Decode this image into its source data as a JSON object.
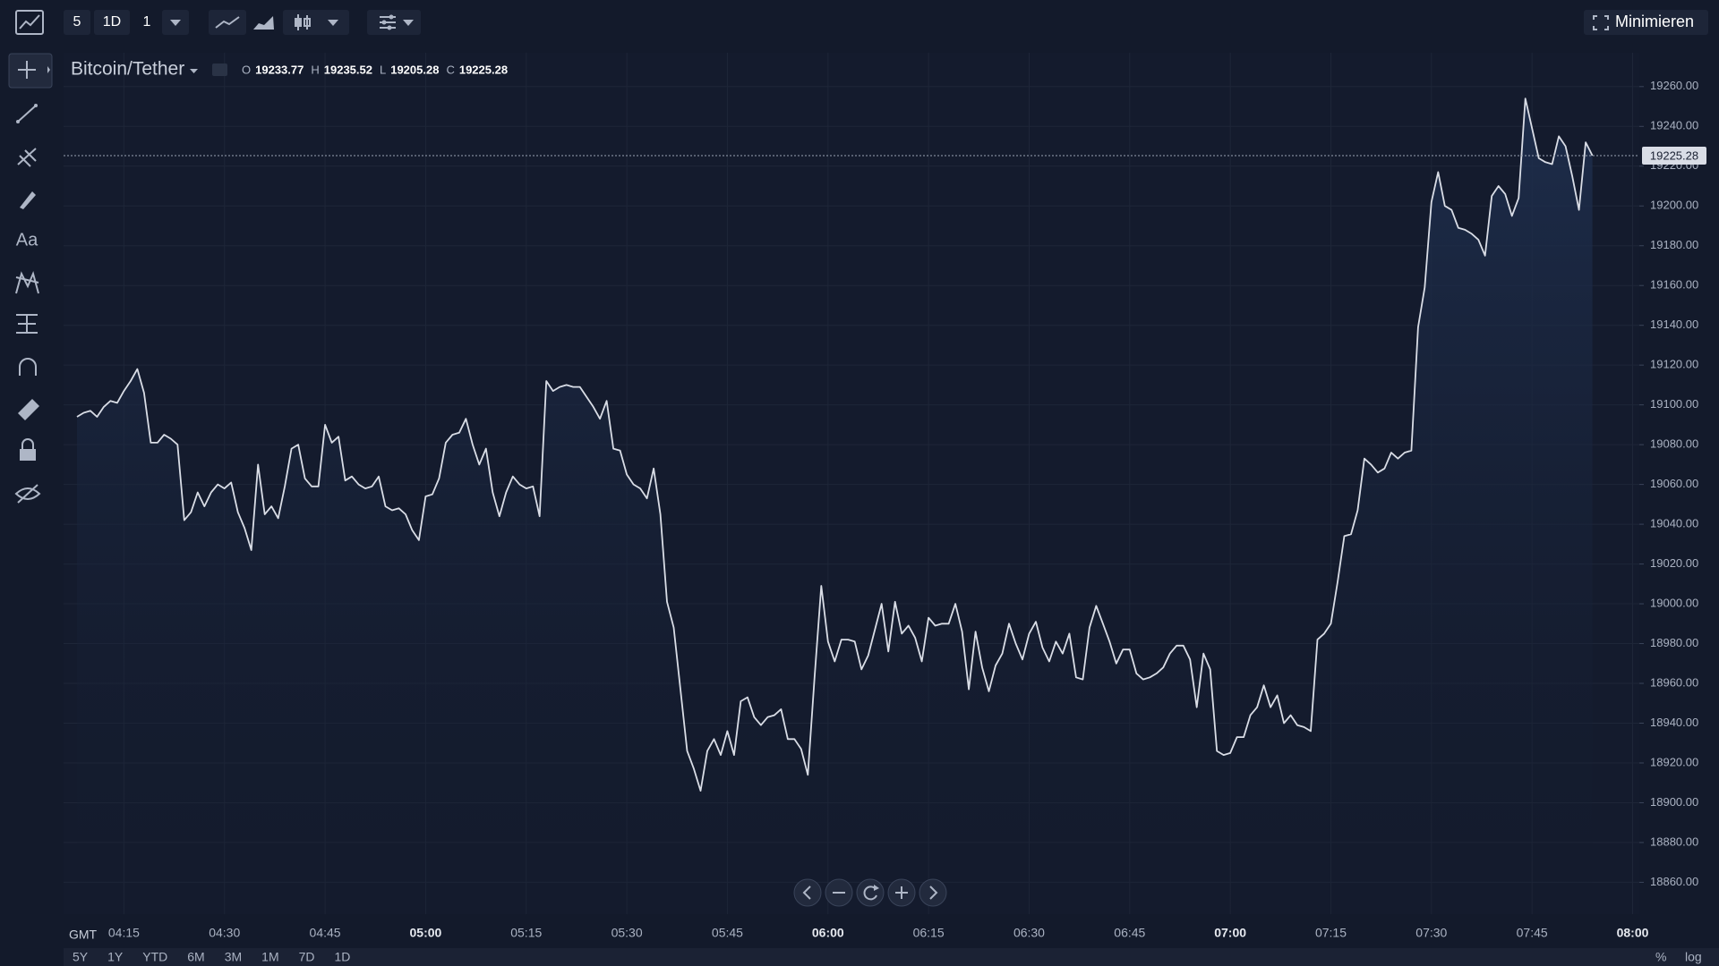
{
  "chart_data": {
    "type": "line",
    "title": "Bitcoin/Tether",
    "color": "#d9dde6",
    "x": [
      "04:08",
      "04:09",
      "04:10",
      "04:11",
      "04:12",
      "04:13",
      "04:14",
      "04:15",
      "04:16",
      "04:17",
      "04:18",
      "04:19",
      "04:20",
      "04:21",
      "04:22",
      "04:23",
      "04:24",
      "04:25",
      "04:26",
      "04:27",
      "04:28",
      "04:29",
      "04:30",
      "04:31",
      "04:32",
      "04:33",
      "04:34",
      "04:35",
      "04:36",
      "04:37",
      "04:38",
      "04:39",
      "04:40",
      "04:41",
      "04:42",
      "04:43",
      "04:44",
      "04:45",
      "04:46",
      "04:47",
      "04:48",
      "04:49",
      "04:50",
      "04:51",
      "04:52",
      "04:53",
      "04:54",
      "04:55",
      "04:56",
      "04:57",
      "04:58",
      "04:59",
      "05:00",
      "05:01",
      "05:02",
      "05:03",
      "05:04",
      "05:05",
      "05:06",
      "05:07",
      "05:08",
      "05:09",
      "05:10",
      "05:11",
      "05:12",
      "05:13",
      "05:14",
      "05:15",
      "05:16",
      "05:17",
      "05:18",
      "05:19",
      "05:20",
      "05:21",
      "05:22",
      "05:23",
      "05:24",
      "05:25",
      "05:26",
      "05:27",
      "05:28",
      "05:29",
      "05:30",
      "05:31",
      "05:32",
      "05:33",
      "05:34",
      "05:35",
      "05:36",
      "05:37",
      "05:38",
      "05:39",
      "05:40",
      "05:41",
      "05:42",
      "05:43",
      "05:44",
      "05:45",
      "05:46",
      "05:47",
      "05:48",
      "05:49",
      "05:50",
      "05:51",
      "05:52",
      "05:53",
      "05:54",
      "05:55",
      "05:56",
      "05:57",
      "05:58",
      "05:59",
      "06:00",
      "06:01",
      "06:02",
      "06:03",
      "06:04",
      "06:05",
      "06:06",
      "06:07",
      "06:08",
      "06:09",
      "06:10",
      "06:11",
      "06:12",
      "06:13",
      "06:14",
      "06:15",
      "06:16",
      "06:17",
      "06:18",
      "06:19",
      "06:20",
      "06:21",
      "06:22",
      "06:23",
      "06:24",
      "06:25",
      "06:26",
      "06:27",
      "06:28",
      "06:29",
      "06:30",
      "06:31",
      "06:32",
      "06:33",
      "06:34",
      "06:35",
      "06:36",
      "06:37",
      "06:38",
      "06:39",
      "06:40",
      "06:41",
      "06:42",
      "06:43",
      "06:44",
      "06:45",
      "06:46",
      "06:47",
      "06:48",
      "06:49",
      "06:50",
      "06:51",
      "06:52",
      "06:53",
      "06:54",
      "06:55",
      "06:56",
      "06:57",
      "06:58",
      "06:59",
      "07:00",
      "07:01",
      "07:02",
      "07:03",
      "07:04",
      "07:05",
      "07:06",
      "07:07",
      "07:08",
      "07:09",
      "07:10",
      "07:11",
      "07:12",
      "07:13",
      "07:14",
      "07:15",
      "07:16",
      "07:17",
      "07:18",
      "07:19",
      "07:20",
      "07:21",
      "07:22",
      "07:23",
      "07:24",
      "07:25",
      "07:26",
      "07:27",
      "07:28",
      "07:29",
      "07:30",
      "07:31",
      "07:32",
      "07:33",
      "07:34",
      "07:35",
      "07:36",
      "07:37",
      "07:38",
      "07:39",
      "07:40",
      "07:41",
      "07:42",
      "07:43",
      "07:44",
      "07:45",
      "07:46",
      "07:47",
      "07:48",
      "07:49",
      "07:50",
      "07:51",
      "07:52",
      "07:53",
      "07:54"
    ],
    "values": [
      19094,
      19096,
      19097,
      19094,
      19099,
      19102,
      19101,
      19107,
      19112,
      19118,
      19106,
      19081,
      19081,
      19085,
      19083,
      19080,
      19042,
      19046,
      19056,
      19049,
      19056,
      19060,
      19058,
      19061,
      19046,
      19038,
      19027,
      19070,
      19045,
      19049,
      19043,
      19059,
      19078,
      19080,
      19063,
      19059,
      19059,
      19090,
      19081,
      19084,
      19062,
      19064,
      19060,
      19058,
      19059,
      19064,
      19049,
      19047,
      19048,
      19045,
      19037,
      19032,
      19054,
      19055,
      19063,
      19081,
      19085,
      19086,
      19093,
      19080,
      19070,
      19078,
      19056,
      19044,
      19056,
      19064,
      19060,
      19058,
      19059,
      19044,
      19112,
      19107,
      19109,
      19110,
      19109,
      19109,
      19104,
      19099,
      19093,
      19102,
      19078,
      19077,
      19065,
      19060,
      19058,
      19053,
      19068,
      19045,
      19001,
      18988,
      18957,
      18926,
      18917,
      18906,
      18926,
      18932,
      18924,
      18936,
      18924,
      18951,
      18953,
      18943,
      18939,
      18943,
      18944,
      18947,
      18932,
      18932,
      18927,
      18914,
      18963,
      19009,
      18981,
      18971,
      18982,
      18982,
      18981,
      18967,
      18974,
      18987,
      19000,
      18976,
      19001,
      18985,
      18989,
      18983,
      18971,
      18993,
      18989,
      18990,
      18990,
      19000,
      18986,
      18957,
      18986,
      18968,
      18956,
      18969,
      18975,
      18990,
      18980,
      18972,
      18985,
      18991,
      18978,
      18971,
      18981,
      18975,
      18985,
      18963,
      18962,
      18988,
      18999,
      18990,
      18981,
      18970,
      18977,
      18977,
      18965,
      18962,
      18963,
      18965,
      18968,
      18975,
      18979,
      18979,
      18972,
      18948,
      18975,
      18967,
      18926,
      18924,
      18925,
      18933,
      18933,
      18944,
      18948,
      18959,
      18948,
      18954,
      18940,
      18944,
      18939,
      18938,
      18936,
      18982,
      18985,
      18990,
      19011,
      19034,
      19035,
      19047,
      19073,
      19070,
      19066,
      19068,
      19076,
      19073,
      19076,
      19077,
      19139,
      19159,
      19202,
      19217,
      19200,
      19198,
      19189,
      19188,
      19186,
      19183,
      19175,
      19205,
      19210,
      19206,
      19195,
      19204,
      19254,
      19239,
      19224,
      19222,
      19221,
      19235,
      19230,
      19215,
      19198,
      19232,
      19225.28
    ],
    "xlim": [
      "04:06",
      "08:01"
    ],
    "xticks": [
      "04:15",
      "04:30",
      "04:45",
      "05:00",
      "05:15",
      "05:30",
      "05:45",
      "06:00",
      "06:15",
      "06:30",
      "06:45",
      "07:00",
      "07:15",
      "07:30",
      "07:45",
      "08:00"
    ],
    "ylim": [
      18844,
      19277
    ],
    "yticks": [
      {
        "value": 18860,
        "label": "18860.00"
      },
      {
        "value": 18880,
        "label": "18880.00"
      },
      {
        "value": 18900,
        "label": "18900.00"
      },
      {
        "value": 18920,
        "label": "18920.00"
      },
      {
        "value": 18940,
        "label": "18940.00"
      },
      {
        "value": 18960,
        "label": "18960.00"
      },
      {
        "value": 18980,
        "label": "18980.00"
      },
      {
        "value": 19000,
        "label": "19000.00"
      },
      {
        "value": 19020,
        "label": "19020.00"
      },
      {
        "value": 19040,
        "label": "19040.00"
      },
      {
        "value": 19060,
        "label": "19060.00"
      },
      {
        "value": 19080,
        "label": "19080.00"
      },
      {
        "value": 19100,
        "label": "19100.00"
      },
      {
        "value": 19120,
        "label": "19120.00"
      },
      {
        "value": 19140,
        "label": "19140.00"
      },
      {
        "value": 19160,
        "label": "19160.00"
      },
      {
        "value": 19180,
        "label": "19180.00"
      },
      {
        "value": 19200,
        "label": "19200.00"
      },
      {
        "value": 19220,
        "label": "19220.00"
      },
      {
        "value": 19240,
        "label": "19240.00"
      },
      {
        "value": 19260,
        "label": "19260.00"
      }
    ],
    "grid": true,
    "last_price": 19225.28
  },
  "ui": {
    "toolbar": {
      "interval": "5",
      "range": "1D",
      "multiplier": "1",
      "minimize": "Minimieren"
    },
    "tool_text": "Aa",
    "ohlc": [
      {
        "label": "O",
        "value": 19233.77
      },
      {
        "label": "H",
        "value": 19235.52
      },
      {
        "label": "L",
        "value": 19205.28
      },
      {
        "label": "C",
        "value": 19225.28
      }
    ],
    "timezone": "GMT",
    "ranges": [
      "5Y",
      "1Y",
      "YTD",
      "6M",
      "3M",
      "1M",
      "7D",
      "1D"
    ],
    "scale_options": [
      "%",
      "log"
    ]
  }
}
